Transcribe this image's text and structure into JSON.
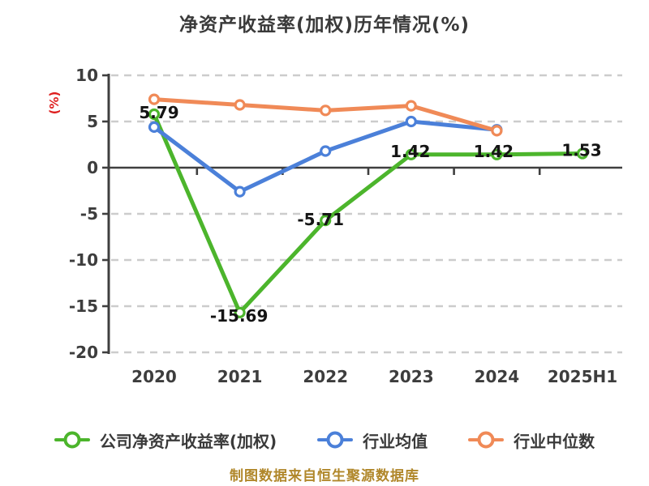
{
  "title": "净资产收益率(加权)历年情况(%)",
  "source_note": "制图数据来自恒生聚源数据库",
  "colors": {
    "background": "#ffffff",
    "title_text": "#3a3a3a",
    "axis": "#3f3f3f",
    "grid": "#cccccc",
    "tick_text": "#3d3d3d",
    "point_label_text": "#141414",
    "y_axis_title_red": "#de1f1f",
    "source_text_gold": "#b0872a",
    "series_company_green": "#4cb52c",
    "series_mean_blue": "#4b80d9",
    "series_median_orange": "#f08a57"
  },
  "chart_data": {
    "type": "line",
    "title": "净资产收益率(加权)历年情况(%)",
    "categories": [
      "2020",
      "2021",
      "2022",
      "2023",
      "2024",
      "2025H1"
    ],
    "series": [
      {
        "key": "company-roe",
        "name": "公司净资产收益率(加权)",
        "color": "#4cb52c",
        "values": [
          5.79,
          -15.69,
          -5.71,
          1.42,
          1.42,
          1.53
        ]
      },
      {
        "key": "industry-mean",
        "name": "行业均值",
        "color": "#4b80d9",
        "values": [
          4.4,
          -2.6,
          1.8,
          5.0,
          4.1,
          null
        ]
      },
      {
        "key": "industry-median",
        "name": "行业中位数",
        "color": "#f08a57",
        "values": [
          7.4,
          6.8,
          6.2,
          6.7,
          4.0,
          null
        ]
      }
    ],
    "point_labels": [
      "5.79",
      "-15.69",
      "-5.71",
      "1.42",
      "1.42",
      "1.53"
    ],
    "labeled_series": "company-roe",
    "xlabel": "",
    "ylabel": "(%)",
    "ylim": [
      -20,
      10
    ],
    "yticks": [
      10,
      5,
      0,
      -5,
      -10,
      -15,
      -20
    ],
    "grid": "horizontal-dashed",
    "marker": "white-filled-circle",
    "legend_position": "bottom"
  }
}
